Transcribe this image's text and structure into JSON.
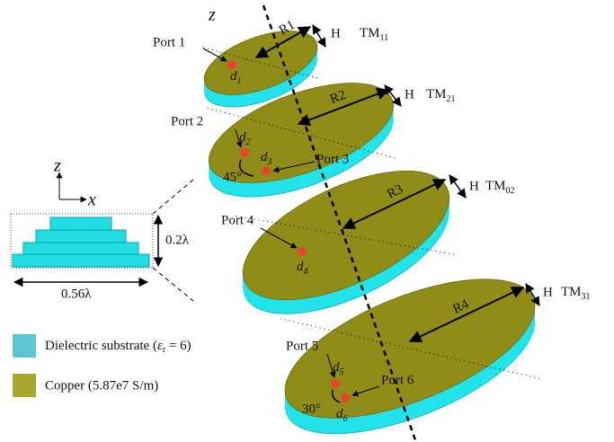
{
  "axis_label": "z",
  "inset": {
    "z": "z",
    "x": "x",
    "height": "0.2λ",
    "width": "0.56λ"
  },
  "discs": [
    {
      "radius": "R1",
      "thickness": "H",
      "mode": "TM",
      "mode_sub": "11"
    },
    {
      "radius": "R2",
      "thickness": "H",
      "mode": "TM",
      "mode_sub": "21"
    },
    {
      "radius": "R3",
      "thickness": "H",
      "mode": "TM",
      "mode_sub": "02"
    },
    {
      "radius": "R4",
      "thickness": "H",
      "mode": "TM",
      "mode_sub": "31"
    }
  ],
  "ports": [
    {
      "label": "Port 1",
      "d": "d",
      "d_sub": "1"
    },
    {
      "label": "Port 2",
      "d": "d",
      "d_sub": "2"
    },
    {
      "label": "Port 3",
      "d": "d",
      "d_sub": "3"
    },
    {
      "label": "Port 4",
      "d": "d",
      "d_sub": "4"
    },
    {
      "label": "Port 5",
      "d": "d",
      "d_sub": "5"
    },
    {
      "label": "Port 6",
      "d": "d",
      "d_sub": "6"
    }
  ],
  "angles": [
    "45°",
    "30°"
  ],
  "legend": [
    {
      "text": "Dielectric substrate (",
      "symbol": "ε",
      "symbol_sub": "r",
      "text_end": " = 6)"
    },
    {
      "text": "Copper (5.87e7 S/m)"
    }
  ]
}
